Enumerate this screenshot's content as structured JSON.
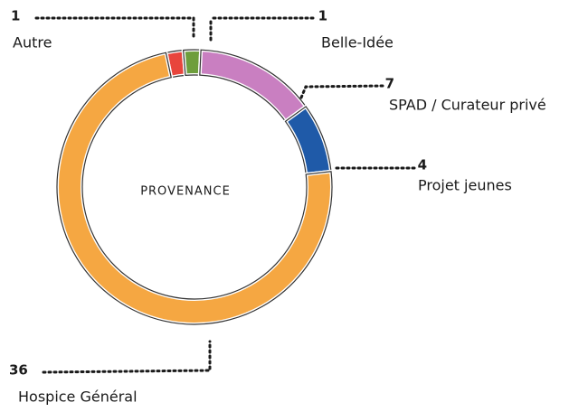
{
  "chart_data": {
    "type": "donut",
    "title": "PROVENANCE",
    "categories": [
      "Autre",
      "Belle-Idée",
      "SPAD / Curateur privé",
      "Projet jeunes",
      "Hospice Général"
    ],
    "values": [
      1,
      1,
      7,
      4,
      36
    ],
    "colors": [
      "#e8453c",
      "#6e9e3c",
      "#c97fc1",
      "#1f5aa8",
      "#f5a742"
    ]
  }
}
